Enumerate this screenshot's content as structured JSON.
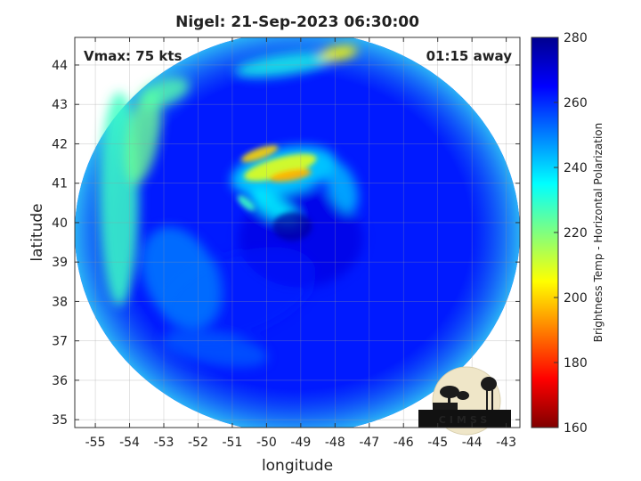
{
  "chart_data": {
    "type": "heatmap",
    "title": "Nigel: 21-Sep-2023 06:30:00",
    "xlabel": "longitude",
    "ylabel": "latitude",
    "xlim": [
      -55.6,
      -42.6
    ],
    "ylim": [
      34.8,
      44.7
    ],
    "xticks": [
      -55,
      -54,
      -53,
      -52,
      -51,
      -50,
      -49,
      -48,
      -47,
      -46,
      -45,
      -44,
      -43
    ],
    "yticks": [
      35,
      36,
      37,
      38,
      39,
      40,
      41,
      42,
      43,
      44
    ],
    "grid": true,
    "annotations": {
      "vmax": "Vmax: 75 kts",
      "time_offset": "01:15 away"
    },
    "logo_text": "CIMSS",
    "colorbar": {
      "label": "Brightness Temp - Horizontal Polarization",
      "clim": [
        160,
        280
      ],
      "ticks": [
        160,
        180,
        200,
        220,
        240,
        260,
        280
      ],
      "colormap": "jet"
    },
    "swath": {
      "center_lon": -49.1,
      "center_lat": 39.75,
      "radius_lon": 6.5,
      "radius_lat": 5.1
    },
    "storm": {
      "eye_lon": -49.25,
      "eye_lat": 39.9,
      "eyewall_min_temp": 196
    }
  }
}
